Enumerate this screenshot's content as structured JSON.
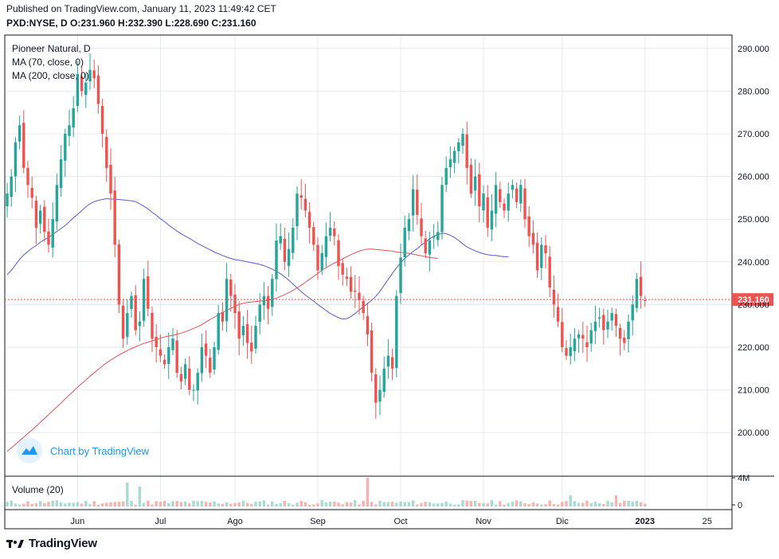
{
  "header": {
    "published": "Published on TradingView.com, January 11, 2023 11:49:42 CET",
    "ohlc": "PXD:NYSE, D  O:231.960 H:232.390 L:228.690 C:231.160"
  },
  "legend": {
    "symbol": "Pioneer Natural, D",
    "ma70": "MA (70, close, 0)",
    "ma200": "MA (200, close, 0)",
    "volume": "Volume (20)"
  },
  "watermark": "Chart by TradingView",
  "footer": {
    "brand": "TradingView"
  },
  "colors": {
    "up": "#26a69a",
    "down": "#ef5350",
    "ma70": "#5b5bd6",
    "ma200": "#e8545a",
    "grid": "#e6e9f0",
    "axis": "#131722",
    "last_price_bg": "#ef5350",
    "volume_up": "#a8dcd1",
    "volume_down": "#f7b3b1"
  },
  "chart_data": {
    "type": "candlestick",
    "symbol": "PXD:NYSE",
    "interval": "D",
    "ylim": [
      190,
      294
    ],
    "y_ticks": [
      200,
      210,
      220,
      230,
      240,
      250,
      260,
      270,
      280,
      290
    ],
    "y_tick_labels": [
      "200.000",
      "210.000",
      "220.000",
      "230.000",
      "240.000",
      "250.000",
      "260.000",
      "270.000",
      "280.000",
      "290.000"
    ],
    "last_price": 231.16,
    "last_price_label": "231.160",
    "x_ticks": [
      {
        "label": "Jun",
        "index": 17
      },
      {
        "label": "Jul",
        "index": 37
      },
      {
        "label": "Ago",
        "index": 55
      },
      {
        "label": "Sep",
        "index": 75
      },
      {
        "label": "Oct",
        "index": 95
      },
      {
        "label": "Nov",
        "index": 115
      },
      {
        "label": "Dic",
        "index": 134
      },
      {
        "label": "2023",
        "index": 154
      },
      {
        "label": "25",
        "index": 169
      }
    ],
    "total_slots": 174,
    "volume_ylim": [
      0,
      4000000
    ],
    "volume_tick_labels": [
      "4M",
      "0"
    ],
    "close": [
      256,
      260,
      268,
      272,
      262,
      258,
      255,
      248,
      252,
      247,
      244,
      250,
      258,
      264,
      270,
      272,
      276,
      284,
      280,
      282,
      285,
      283,
      277,
      270,
      262,
      256,
      244,
      230,
      222,
      228,
      232,
      224,
      226,
      236,
      229,
      222,
      220,
      218,
      216,
      220,
      222,
      214,
      212,
      216,
      210,
      210,
      214,
      220,
      218,
      214,
      220,
      228,
      226,
      236,
      232,
      228,
      222,
      225,
      221,
      219,
      225,
      230,
      232,
      229,
      236,
      245,
      246,
      240,
      243,
      248,
      256,
      255,
      252,
      248,
      244,
      238,
      242,
      246,
      248,
      246,
      239,
      237,
      236,
      233,
      233,
      231,
      228,
      223,
      214,
      207,
      210,
      215,
      218,
      215,
      232,
      241,
      248,
      250,
      257,
      251,
      246,
      242,
      245,
      246,
      247,
      258,
      262,
      264,
      266,
      268,
      270,
      262,
      256,
      260,
      253,
      256,
      248,
      252,
      258,
      254,
      252,
      256,
      258,
      254,
      258,
      250,
      246,
      244,
      238,
      244,
      242,
      234,
      230,
      226,
      220,
      218,
      220,
      222,
      223,
      222,
      220,
      224,
      226,
      227,
      224,
      226,
      228,
      225,
      222,
      221,
      226,
      230,
      236,
      232,
      231
    ],
    "ma70": [
      237.0,
      238.0,
      239.3,
      240.6,
      241.6,
      242.4,
      243.2,
      243.8,
      244.6,
      245.2,
      245.7,
      246.4,
      247.1,
      247.8,
      248.5,
      249.4,
      250.3,
      251.1,
      252.0,
      252.9,
      253.6,
      254.1,
      254.4,
      254.6,
      254.8,
      254.7,
      254.7,
      254.6,
      254.5,
      254.4,
      254.3,
      254.1,
      253.6,
      253.0,
      252.4,
      251.6,
      250.9,
      250.1,
      249.4,
      248.6,
      247.9,
      247.2,
      246.6,
      246.0,
      245.5,
      244.9,
      244.3,
      243.8,
      243.3,
      242.8,
      242.3,
      241.9,
      241.5,
      241.1,
      240.8,
      240.5,
      240.4,
      240.2,
      240.0,
      239.8,
      239.6,
      239.4,
      239.1,
      238.7,
      238.3,
      237.8,
      237.2,
      236.5,
      235.7,
      234.8,
      233.9,
      233.0,
      232.2,
      231.5,
      230.8,
      230.0,
      229.3,
      228.6,
      227.9,
      227.4,
      226.9,
      226.6,
      226.7,
      227.2,
      227.9,
      228.7,
      229.5,
      230.2,
      231.0,
      231.9,
      233.1,
      234.5,
      235.9,
      237.3,
      238.6,
      239.8,
      240.8,
      241.6,
      242.4,
      243.1,
      243.9,
      244.6,
      245.4,
      246.0,
      246.4,
      246.7,
      246.6,
      246.2,
      245.7,
      245.0,
      244.2,
      243.5,
      243.0,
      242.6,
      242.2,
      241.9,
      241.7,
      241.5,
      241.5,
      241.3,
      241.2,
      241.2
    ],
    "ma70_start_index": 0,
    "ma200": [
      195.6,
      196.4,
      197.2,
      198.1,
      198.9,
      199.8,
      200.6,
      201.5,
      202.4,
      203.3,
      204.2,
      205.1,
      206.0,
      206.9,
      207.9,
      208.8,
      209.7,
      210.6,
      211.5,
      212.3,
      213.2,
      214.0,
      214.8,
      215.6,
      216.3,
      217.0,
      217.6,
      218.2,
      218.7,
      219.2,
      219.7,
      220.1,
      220.5,
      220.9,
      221.2,
      221.5,
      221.8,
      222.1,
      222.4,
      222.6,
      222.8,
      223.0,
      223.3,
      223.6,
      224.0,
      224.4,
      224.8,
      225.3,
      225.9,
      226.5,
      227.0,
      227.6,
      228.1,
      228.6,
      229.1,
      229.6,
      230.0,
      230.3,
      230.5,
      230.6,
      230.7,
      230.8,
      230.9,
      231.0,
      231.2,
      231.5,
      231.9,
      232.3,
      232.8,
      233.3,
      233.9,
      234.5,
      235.2,
      235.9,
      236.6,
      237.3,
      238.0,
      238.6,
      239.2,
      239.7,
      240.2,
      240.7,
      241.2,
      241.7,
      242.1,
      242.5,
      242.8,
      243.0,
      243.0,
      242.9,
      242.8,
      242.7,
      242.6,
      242.5,
      242.3,
      242.2,
      242.1,
      242.0,
      241.8,
      241.6,
      241.4,
      241.2,
      241.0,
      240.9,
      240.8
    ]
  }
}
